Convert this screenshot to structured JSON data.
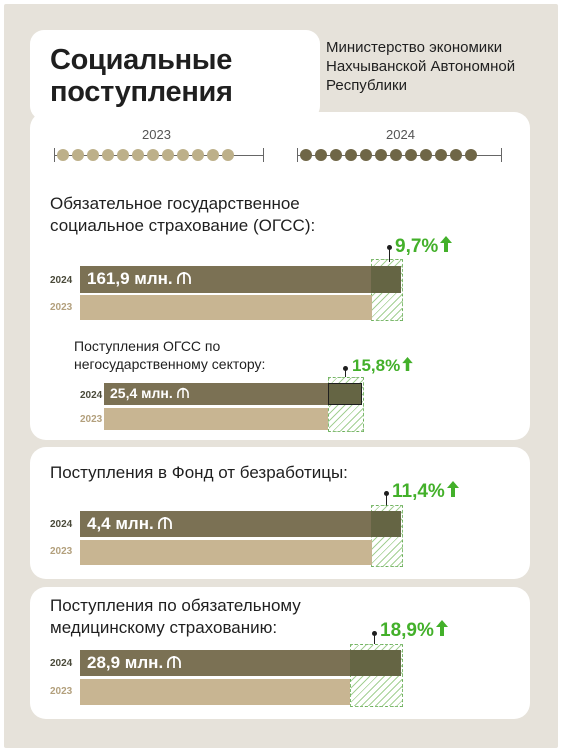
{
  "header": {
    "title_line1": "Социальные",
    "title_line2": "поступления",
    "ministry_line1": "Министерство экономики",
    "ministry_line2": "Нахчыванской Автономной",
    "ministry_line3": "Республики"
  },
  "timeline": {
    "year_2023": "2023",
    "year_2024": "2024",
    "color_2023": "#bdb08a",
    "color_2024": "#6f6647"
  },
  "sections": {
    "ogss": {
      "title_line1": "Обязательное государственное",
      "title_line2": "социальное страхование (ОГСС):",
      "value_2024": "161,9 млн.",
      "growth": "9,7%",
      "label_2024": "2024",
      "label_2023": "2023",
      "ratio_2023_to_2024": 0.912
    },
    "nongov": {
      "title_line1": "Поступления ОГСС по",
      "title_line2": "негосударственному сектору:",
      "value_2024": "25,4 млн.",
      "growth": "15,8%",
      "label_2024": "2024",
      "label_2023": "2023",
      "ratio_2023_to_2024": 0.864
    },
    "unemployment": {
      "title": "Поступления в Фонд от безработицы:",
      "value_2024": "4,4 млн.",
      "growth": "11,4%",
      "label_2024": "2024",
      "label_2023": "2023",
      "ratio_2023_to_2024": 0.898
    },
    "medical": {
      "title_line1": "Поступления по обязательному",
      "title_line2": "медицинскому страхованию:",
      "value_2024": "28,9 млн.",
      "growth": "18,9%",
      "label_2024": "2024",
      "label_2023": "2023",
      "ratio_2023_to_2024": 0.841
    }
  },
  "colors": {
    "bar_2024": "#7b7154",
    "bar_2023": "#c8b592",
    "growth_green": "#43b02a",
    "background": "#e6e2da"
  },
  "icons": {
    "currency": "manat-icon",
    "growth": "arrow-up-icon"
  }
}
